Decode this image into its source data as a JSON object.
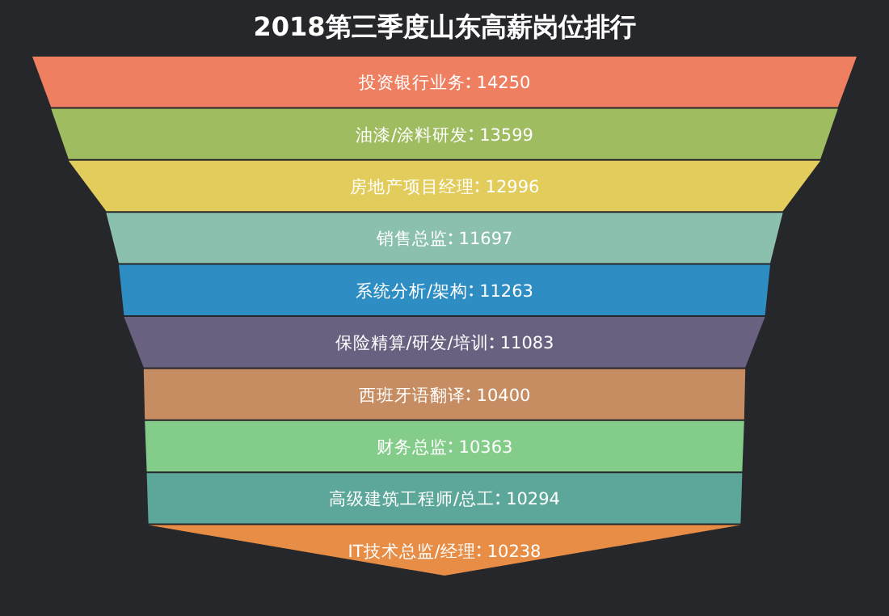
{
  "chart_data": {
    "type": "other",
    "title": "2018第三季度山东高薪岗位排行",
    "categories": [
      "投资银行业务",
      "油漆/涂料研发",
      "房地产项目经理",
      "销售总监",
      "系统分析/架构",
      "保险精算/研发/培训",
      "西班牙语翻译",
      "财务总监",
      "高级建筑工程师/总工",
      "IT技术总监/经理"
    ],
    "values": [
      14250,
      13599,
      12996,
      11697,
      11263,
      11083,
      10400,
      10363,
      10294,
      10238
    ],
    "colors": [
      "#ee7f60",
      "#9fbd60",
      "#e2cc5c",
      "#8cc0ae",
      "#2e8ec4",
      "#6a6180",
      "#c78d62",
      "#84cc8a",
      "#5ca79a",
      "#e88d45"
    ],
    "data_labels": true
  }
}
